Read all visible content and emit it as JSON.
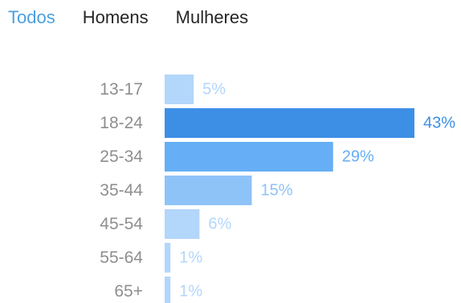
{
  "tabs": [
    {
      "label": "Todos",
      "active": true
    },
    {
      "label": "Homens",
      "active": false
    },
    {
      "label": "Mulheres",
      "active": false
    }
  ],
  "colors": {
    "accent": "#4a9fe0",
    "tab_inactive": "#262626",
    "category_label": "#8e8e8e"
  },
  "chart_data": {
    "type": "bar",
    "orientation": "horizontal",
    "categories": [
      "13-17",
      "18-24",
      "25-34",
      "35-44",
      "45-54",
      "55-64",
      "65+"
    ],
    "values": [
      5,
      43,
      29,
      15,
      6,
      1,
      1
    ],
    "value_labels": [
      "5%",
      "43%",
      "29%",
      "15%",
      "6%",
      "1%",
      "1%"
    ],
    "bar_colors": [
      "#b3d6fb",
      "#3d8fe6",
      "#66aef5",
      "#8ec3f8",
      "#b3d6fb",
      "#b3d6fb",
      "#b3d6fb"
    ],
    "label_colors": [
      "#b3d6fb",
      "#3d8fe6",
      "#66aef5",
      "#8ec3f8",
      "#b3d6fb",
      "#b3d6fb",
      "#b3d6fb"
    ],
    "xlim": [
      0,
      43
    ],
    "grid": false,
    "legend": "none"
  }
}
